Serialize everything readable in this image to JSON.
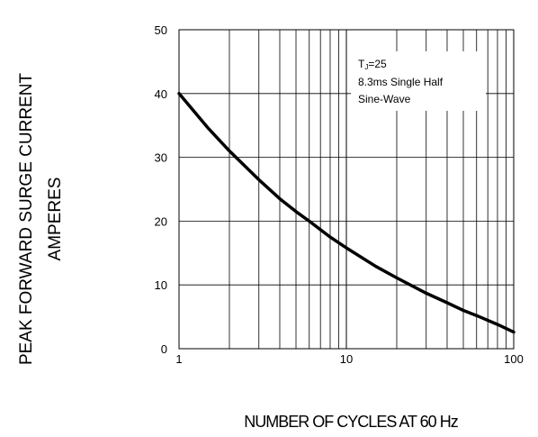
{
  "chart_data": {
    "type": "line",
    "title": "",
    "xlabel": "NUMBER OF CYCLES AT 60 Hz",
    "ylabel_lines": [
      "PEAK FORWARD SURGE CURRENT",
      "AMPERES"
    ],
    "x_scale": "log",
    "xlim": [
      1,
      100
    ],
    "ylim": [
      0,
      50
    ],
    "x_ticks": [
      1,
      10,
      100
    ],
    "y_ticks": [
      0,
      10,
      20,
      30,
      40,
      50
    ],
    "grid": true,
    "annotation": {
      "lines": [
        "TJ=25",
        "8.3ms Single Half",
        "Sine-Wave"
      ],
      "placement": "top-right"
    },
    "series": [
      {
        "x": [
          1,
          1.5,
          2,
          3,
          4,
          5,
          6,
          8,
          10,
          15,
          20,
          30,
          40,
          50,
          60,
          80,
          100
        ],
        "y": [
          40,
          34.5,
          31,
          26.5,
          23.5,
          21.5,
          20,
          17.5,
          15.8,
          12.9,
          11.1,
          8.7,
          7.2,
          6.0,
          5.2,
          3.8,
          2.6
        ]
      }
    ],
    "colors": {
      "line": "#000000",
      "grid": "#000000",
      "background": "#ffffff"
    }
  }
}
